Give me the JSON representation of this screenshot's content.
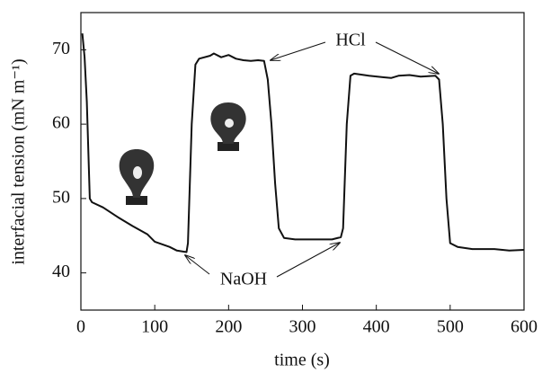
{
  "chart_data": {
    "type": "line",
    "x_label": "time (s)",
    "y_label": "interfacial tension (mN m⁻¹)",
    "x": [
      2,
      5,
      8,
      12,
      15,
      30,
      50,
      70,
      90,
      100,
      120,
      130,
      143,
      145,
      150,
      155,
      160,
      175,
      180,
      190,
      200,
      210,
      220,
      230,
      240,
      248,
      253,
      258,
      263,
      268,
      275,
      290,
      320,
      340,
      352,
      355,
      360,
      365,
      370,
      390,
      410,
      420,
      430,
      445,
      460,
      480,
      485,
      490,
      495,
      500,
      510,
      530,
      560,
      580,
      600
    ],
    "series": [
      {
        "color": "#111111",
        "values": [
          72.2,
          69,
          63,
          50,
          49.5,
          48.8,
          47.5,
          46.3,
          45.2,
          44.2,
          43.5,
          43.0,
          42.8,
          44,
          60,
          68,
          68.8,
          69.2,
          69.5,
          69,
          69.3,
          68.8,
          68.6,
          68.5,
          68.6,
          68.5,
          66,
          60,
          52,
          46,
          44.7,
          44.5,
          44.5,
          44.5,
          44.8,
          46,
          60,
          66.5,
          66.8,
          66.5,
          66.3,
          66.2,
          66.5,
          66.6,
          66.4,
          66.5,
          66,
          60,
          50,
          44,
          43.5,
          43.2,
          43.2,
          43,
          43.1
        ]
      }
    ],
    "xlim": [
      0,
      600
    ],
    "xticks": [
      0,
      100,
      200,
      300,
      400,
      500,
      600
    ],
    "ylim": [
      35,
      75
    ],
    "yticks": [
      40,
      50,
      60,
      70
    ],
    "annotations": [
      {
        "text": "HCl"
      },
      {
        "text": "NaOH"
      }
    ]
  }
}
